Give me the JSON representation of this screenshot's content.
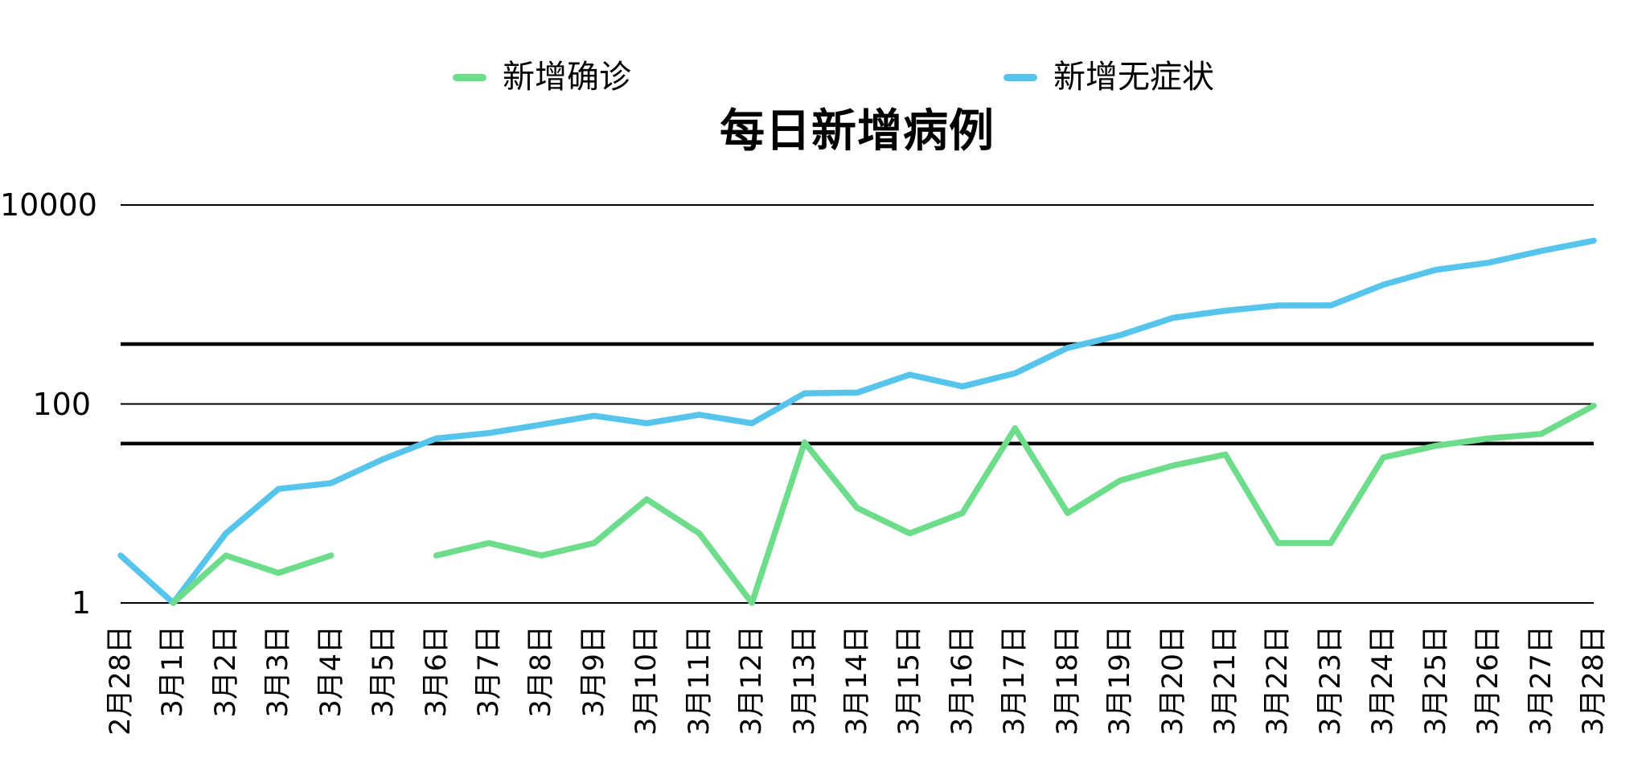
{
  "title": "每日新增病例",
  "legend": {
    "items": [
      {
        "label": "新增确诊",
        "color": "#6ddc8b"
      },
      {
        "label": "新增无症状",
        "color": "#57c4ec"
      }
    ]
  },
  "y_axis": {
    "tick_labels": [
      "10000",
      "100",
      "1"
    ]
  },
  "chart_data": {
    "type": "line",
    "title": "每日新增病例",
    "categories": [
      "2月28日",
      "3月1日",
      "3月2日",
      "3月3日",
      "3月4日",
      "3月5日",
      "3月6日",
      "3月7日",
      "3月8日",
      "3月9日",
      "3月10日",
      "3月11日",
      "3月12日",
      "3月13日",
      "3月14日",
      "3月15日",
      "3月16日",
      "3月17日",
      "3月18日",
      "3月19日",
      "3月20日",
      "3月21日",
      "3月22日",
      "3月23日",
      "3月24日",
      "3月25日",
      "3月26日",
      "3月27日",
      "3月28日"
    ],
    "series": [
      {
        "name": "新增确诊",
        "color": "#6ddc8b",
        "values": [
          null,
          1,
          3,
          2,
          3,
          null,
          3,
          4,
          3,
          4,
          11,
          5,
          1,
          41,
          9,
          5,
          8,
          57,
          8,
          17,
          24,
          31,
          4,
          4,
          29,
          38,
          45,
          50,
          96
        ]
      },
      {
        "name": "新增无症状",
        "color": "#57c4ec",
        "values": [
          3,
          1,
          5,
          14,
          16,
          28,
          45,
          51,
          62,
          76,
          64,
          78,
          64,
          128,
          130,
          197,
          150,
          203,
          366,
          492,
          734,
          865,
          977,
          979,
          1580,
          2231,
          2631,
          3450,
          4381
        ]
      }
    ],
    "y_scale": "log",
    "y_ticks": [
      {
        "value": 10000,
        "label": "10000"
      },
      {
        "value": 100,
        "label": "100"
      },
      {
        "value": 1,
        "label": "1"
      }
    ],
    "y_minor_gridlines": [
      400,
      40
    ],
    "ylim": [
      1,
      10000
    ],
    "grid": true,
    "gridline_color": "#000000",
    "legend_position": "top",
    "background": "#ffffff"
  }
}
